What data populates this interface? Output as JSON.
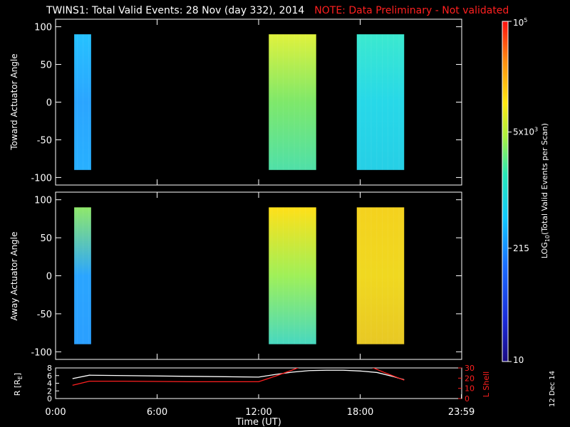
{
  "title": {
    "main": "TWINS1: Total Valid Events: 28 Nov (day 332), 2014",
    "note": "NOTE: Data Preliminary - Not validated"
  },
  "stamp": "12 Dec 14",
  "colors": {
    "background": "#000000",
    "axes": "#ffffff",
    "note": "#ff2020",
    "r_line": "#ffffff",
    "lshell_line": "#ff2020"
  },
  "chart_data": [
    {
      "type": "heatmap",
      "ylabel": "Toward Actuator Angle",
      "yticks": [
        "100",
        "50",
        "0",
        "-50",
        "-100"
      ],
      "ylim": [
        -110,
        110
      ],
      "xlim": [
        0,
        24
      ],
      "data_ylim": [
        -90,
        90
      ],
      "blocks": [
        {
          "x": [
            1.1,
            2.1
          ],
          "base": "#2aa5ff",
          "top": "#26c2ff",
          "bottom": "#28b0ff"
        },
        {
          "x": [
            12.6,
            15.4
          ],
          "base": "#7ee86a",
          "top": "#e0f23c",
          "bottom": "#4fe0a8"
        },
        {
          "x": [
            17.8,
            20.6
          ],
          "base": "#27d8e8",
          "top": "#3be9cf",
          "bottom": "#26cfe6"
        }
      ]
    },
    {
      "type": "heatmap",
      "ylabel": "Away Actuator Angle",
      "yticks": [
        "100",
        "50",
        "0",
        "-50",
        "-100"
      ],
      "ylim": [
        -110,
        110
      ],
      "xlim": [
        0,
        24
      ],
      "data_ylim": [
        -90,
        90
      ],
      "blocks": [
        {
          "x": [
            1.1,
            2.1
          ],
          "base": "#2aa5ff",
          "top": "#8fe86a",
          "bottom": "#2a9fff"
        },
        {
          "x": [
            12.6,
            15.4
          ],
          "base": "#9ff058",
          "top": "#ffe018",
          "bottom": "#47d8c0"
        },
        {
          "x": [
            17.8,
            20.6
          ],
          "base": "#f0d820",
          "top": "#f4d21e",
          "bottom": "#e8c824"
        }
      ]
    },
    {
      "type": "line",
      "xlabel": "Time (UT)",
      "xticks": [
        "0:00",
        "6:00",
        "12:00",
        "18:00",
        "23:59"
      ],
      "xlim": [
        0,
        24
      ],
      "ylabel_left": "R [R_E]",
      "ylabel_left_main": "R [R",
      "ylabel_left_sub": "E",
      "ylabel_left_end": "]",
      "ylim_left": [
        0,
        8
      ],
      "yticks_left": [
        "0",
        "2",
        "4",
        "6",
        "8"
      ],
      "ylabel_right": "L Shell",
      "ylim_right": [
        0,
        30
      ],
      "yticks_right": [
        "0",
        "10",
        "20",
        "30"
      ],
      "series": [
        {
          "axis": "left",
          "x": [
            1.0,
            2.0,
            4.0,
            8.0,
            12.0,
            13.0,
            14.0,
            15.0,
            16.0,
            17.0,
            18.0,
            19.0,
            20.0,
            20.6
          ],
          "values": [
            5.2,
            6.1,
            6.0,
            5.8,
            5.6,
            6.3,
            6.9,
            7.3,
            7.4,
            7.4,
            7.2,
            6.8,
            5.7,
            4.9
          ]
        },
        {
          "axis": "right",
          "x": [
            1.0,
            2.0,
            4.0,
            8.0,
            12.0,
            13.0,
            14.0,
            14.6,
            18.5,
            19.5,
            20.6
          ],
          "values": [
            13,
            17,
            17,
            16.5,
            16.5,
            22,
            28,
            32,
            32,
            25,
            18
          ]
        }
      ]
    },
    {
      "type": "colorbar",
      "label_main": "LOG",
      "label_sub": "10",
      "label_end": "(Total Valid Events per Scan)",
      "ticks": [
        {
          "label": "10",
          "value": 10
        },
        {
          "label": "215",
          "value": 215
        },
        {
          "label_base": "5x10",
          "label_exp": "3",
          "value": 5000
        },
        {
          "label_base": "10",
          "label_exp": "5",
          "value": 100000
        }
      ],
      "range": [
        10,
        100000
      ],
      "scale": "log"
    }
  ]
}
